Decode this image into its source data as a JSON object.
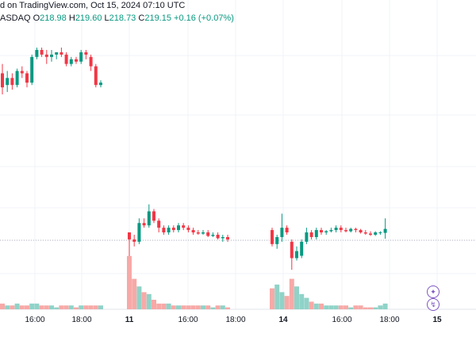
{
  "header": {
    "published": "d on TradingView.com, Oct 15, 2024 07:10 UTC",
    "symbol_fragment": "ASDAQ",
    "open_label": "O",
    "open": "218.98",
    "high_label": "H",
    "high": "219.60",
    "low_label": "L",
    "low": "218.73",
    "close_label": "C",
    "close": "219.15",
    "change": "+0.16 (+0.07%)"
  },
  "colors": {
    "up": "#089981",
    "down": "#f23645",
    "up_volume": "#8fd3c8",
    "down_volume": "#f7a9a7",
    "grid": "#f0f3fa",
    "text": "#131722",
    "tool_accent": "#7e57c2"
  },
  "tools": [
    {
      "icon": "sparkle-icon"
    },
    {
      "icon": "lightning-icon"
    }
  ],
  "time_axis": {
    "labels": [
      "16:00",
      "18:00",
      "11",
      "16:00",
      "18:00",
      "14",
      "16:00",
      "18:00",
      "15"
    ],
    "bold": [
      false,
      false,
      true,
      false,
      false,
      true,
      false,
      false,
      true
    ]
  },
  "chart_data": {
    "type": "candlestick",
    "session_1": [
      {
        "o": 225.8,
        "h": 226.2,
        "l": 224.9,
        "c": 225.2
      },
      {
        "o": 225.3,
        "h": 225.9,
        "l": 225.0,
        "c": 225.6
      },
      {
        "o": 225.6,
        "h": 225.8,
        "l": 225.1,
        "c": 225.3
      },
      {
        "o": 225.3,
        "h": 226.0,
        "l": 225.2,
        "c": 225.9
      },
      {
        "o": 225.9,
        "h": 226.1,
        "l": 225.6,
        "c": 225.8
      },
      {
        "o": 225.8,
        "h": 225.9,
        "l": 225.2,
        "c": 225.4
      },
      {
        "o": 225.4,
        "h": 226.6,
        "l": 225.3,
        "c": 226.5
      },
      {
        "o": 226.5,
        "h": 226.9,
        "l": 226.4,
        "c": 226.8
      },
      {
        "o": 226.8,
        "h": 226.9,
        "l": 226.5,
        "c": 226.6
      },
      {
        "o": 226.6,
        "h": 226.8,
        "l": 226.2,
        "c": 226.5
      },
      {
        "o": 226.5,
        "h": 226.8,
        "l": 226.3,
        "c": 226.6
      },
      {
        "o": 226.6,
        "h": 226.7,
        "l": 226.4,
        "c": 226.7
      },
      {
        "o": 226.7,
        "h": 226.9,
        "l": 226.5,
        "c": 226.6
      },
      {
        "o": 226.6,
        "h": 226.7,
        "l": 226.1,
        "c": 226.2
      },
      {
        "o": 226.2,
        "h": 226.5,
        "l": 226.1,
        "c": 226.4
      },
      {
        "o": 226.4,
        "h": 226.5,
        "l": 226.2,
        "c": 226.3
      },
      {
        "o": 226.3,
        "h": 226.8,
        "l": 226.2,
        "c": 226.7
      },
      {
        "o": 226.7,
        "h": 226.8,
        "l": 226.4,
        "c": 226.6
      },
      {
        "o": 226.5,
        "h": 226.6,
        "l": 225.9,
        "c": 226.1
      },
      {
        "o": 226.1,
        "h": 226.2,
        "l": 225.2,
        "c": 225.3
      },
      {
        "o": 225.3,
        "h": 225.5,
        "l": 225.2,
        "c": 225.4
      }
    ],
    "session_2": [
      {
        "o": 219.0,
        "h": 219.0,
        "l": 216.9,
        "c": 218.7
      },
      {
        "o": 218.7,
        "h": 218.9,
        "l": 218.4,
        "c": 218.6
      },
      {
        "o": 218.6,
        "h": 219.6,
        "l": 218.5,
        "c": 219.4
      },
      {
        "o": 219.4,
        "h": 219.6,
        "l": 219.2,
        "c": 219.3
      },
      {
        "o": 219.3,
        "h": 220.2,
        "l": 219.2,
        "c": 219.9
      },
      {
        "o": 219.9,
        "h": 220.0,
        "l": 219.4,
        "c": 219.5
      },
      {
        "o": 219.5,
        "h": 219.6,
        "l": 219.0,
        "c": 219.2
      },
      {
        "o": 219.2,
        "h": 219.3,
        "l": 218.9,
        "c": 219.0
      },
      {
        "o": 219.0,
        "h": 219.3,
        "l": 218.9,
        "c": 219.2
      },
      {
        "o": 219.2,
        "h": 219.3,
        "l": 219.0,
        "c": 219.1
      },
      {
        "o": 219.1,
        "h": 219.4,
        "l": 219.0,
        "c": 219.3
      },
      {
        "o": 219.3,
        "h": 219.4,
        "l": 219.1,
        "c": 219.2
      },
      {
        "o": 219.2,
        "h": 219.3,
        "l": 219.0,
        "c": 219.1
      },
      {
        "o": 219.1,
        "h": 219.2,
        "l": 218.9,
        "c": 219.0
      },
      {
        "o": 219.0,
        "h": 219.1,
        "l": 218.9,
        "c": 218.95
      },
      {
        "o": 218.95,
        "h": 219.1,
        "l": 218.9,
        "c": 219.0
      },
      {
        "o": 219.0,
        "h": 219.1,
        "l": 218.8,
        "c": 218.85
      },
      {
        "o": 218.85,
        "h": 219.0,
        "l": 218.8,
        "c": 218.9
      },
      {
        "o": 218.9,
        "h": 219.0,
        "l": 218.7,
        "c": 218.75
      },
      {
        "o": 218.75,
        "h": 218.9,
        "l": 218.6,
        "c": 218.8
      },
      {
        "o": 218.8,
        "h": 218.9,
        "l": 218.6,
        "c": 218.7
      }
    ],
    "session_3": [
      {
        "o": 219.1,
        "h": 219.2,
        "l": 218.4,
        "c": 218.5
      },
      {
        "o": 218.5,
        "h": 218.9,
        "l": 218.3,
        "c": 218.8
      },
      {
        "o": 218.8,
        "h": 219.8,
        "l": 218.6,
        "c": 219.2
      },
      {
        "o": 219.2,
        "h": 219.3,
        "l": 218.9,
        "c": 219.0
      },
      {
        "o": 218.6,
        "h": 218.7,
        "l": 217.4,
        "c": 217.9
      },
      {
        "o": 217.9,
        "h": 218.4,
        "l": 217.8,
        "c": 218.2
      },
      {
        "o": 218.0,
        "h": 218.7,
        "l": 217.9,
        "c": 218.6
      },
      {
        "o": 218.6,
        "h": 219.2,
        "l": 218.5,
        "c": 219.0
      },
      {
        "o": 219.0,
        "h": 219.1,
        "l": 218.7,
        "c": 218.8
      },
      {
        "o": 218.8,
        "h": 219.2,
        "l": 218.7,
        "c": 219.1
      },
      {
        "o": 219.1,
        "h": 219.2,
        "l": 218.9,
        "c": 219.0
      },
      {
        "o": 219.0,
        "h": 219.1,
        "l": 218.9,
        "c": 219.05
      },
      {
        "o": 219.05,
        "h": 219.2,
        "l": 219.0,
        "c": 219.1
      },
      {
        "o": 219.1,
        "h": 219.3,
        "l": 219.0,
        "c": 219.2
      },
      {
        "o": 219.2,
        "h": 219.3,
        "l": 219.0,
        "c": 219.1
      },
      {
        "o": 219.1,
        "h": 219.2,
        "l": 219.0,
        "c": 219.05
      },
      {
        "o": 219.05,
        "h": 219.2,
        "l": 219.0,
        "c": 219.15
      },
      {
        "o": 219.15,
        "h": 219.2,
        "l": 219.0,
        "c": 219.1
      },
      {
        "o": 219.1,
        "h": 219.15,
        "l": 218.95,
        "c": 219.0
      },
      {
        "o": 219.0,
        "h": 219.1,
        "l": 218.9,
        "c": 218.95
      },
      {
        "o": 218.95,
        "h": 219.05,
        "l": 218.85,
        "c": 218.9
      },
      {
        "o": 218.9,
        "h": 219.05,
        "l": 218.85,
        "c": 219.0
      },
      {
        "o": 219.0,
        "h": 219.05,
        "l": 218.9,
        "c": 219.0
      },
      {
        "o": 218.98,
        "h": 219.6,
        "l": 218.73,
        "c": 219.15
      }
    ],
    "volume_1": [
      3,
      2,
      2,
      3,
      2,
      2,
      3,
      3,
      2,
      2,
      2,
      1,
      2,
      2,
      2,
      1,
      2,
      2,
      2,
      2,
      2
    ],
    "volume_2": [
      28,
      16,
      12,
      9,
      8,
      5,
      3,
      3,
      3,
      2,
      2,
      2,
      2,
      2,
      2,
      2,
      2,
      1,
      2,
      2,
      1
    ],
    "volume_3": [
      11,
      13,
      9,
      7,
      16,
      12,
      8,
      6,
      4,
      3,
      3,
      2,
      2,
      2,
      2,
      2,
      1,
      2,
      2,
      1,
      1,
      1,
      2,
      3
    ]
  }
}
